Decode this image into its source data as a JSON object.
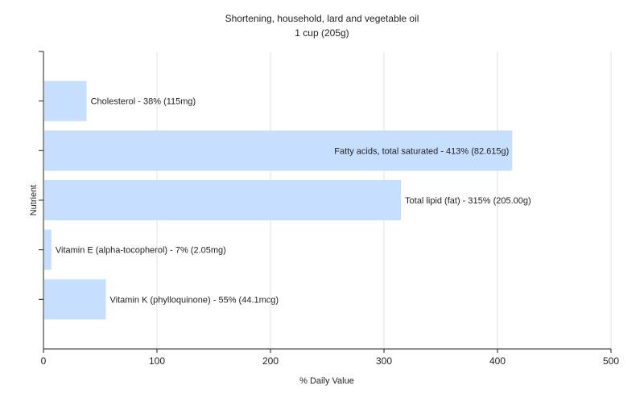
{
  "chart_data": {
    "type": "bar",
    "orientation": "horizontal",
    "title": "Shortening, household, lard and vegetable oil",
    "subtitle": "1 cup (205g)",
    "xlabel": "% Daily Value",
    "ylabel": "Nutrient",
    "xlim": [
      0,
      500
    ],
    "xticks": [
      0,
      100,
      200,
      300,
      400,
      500
    ],
    "grid": true,
    "bar_color": "#c6dfff",
    "categories": [
      "Cholesterol",
      "Fatty acids, total saturated",
      "Total lipid (fat)",
      "Vitamin E (alpha-tocopherol)",
      "Vitamin K (phylloquinone)"
    ],
    "values": [
      38,
      413,
      315,
      7,
      55
    ],
    "bar_labels": [
      "Cholesterol - 38% (115mg)",
      "Fatty acids, total saturated - 413% (82.615g)",
      "Total lipid (fat) - 315% (205.00g)",
      "Vitamin E (alpha-tocopherol) - 7% (2.05mg)",
      "Vitamin K (phylloquinone) - 55% (44.1mcg)"
    ]
  }
}
